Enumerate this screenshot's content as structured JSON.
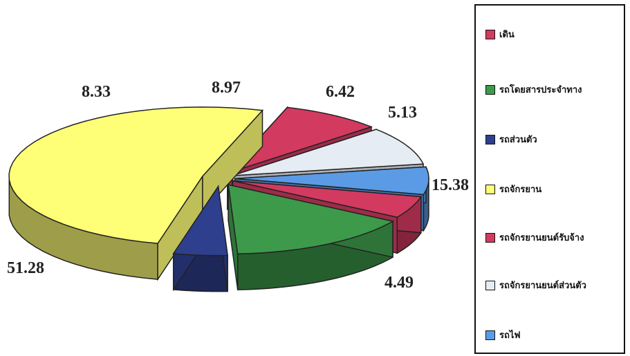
{
  "chart_data": {
    "type": "pie",
    "style": "3d-exploded",
    "slices": [
      {
        "name": "เดิน",
        "value": 8.33,
        "label": "8.33",
        "color": "#d33a60"
      },
      {
        "name": "รถโดยสารประจำทาง",
        "value": 15.38,
        "label": "15.38",
        "color": "#3d9a4a"
      },
      {
        "name": "รถส่วนตัว",
        "value": 4.49,
        "label": "4.49",
        "color": "#2e3f8e"
      },
      {
        "name": "รถจักรยาน",
        "value": 51.28,
        "label": "51.28",
        "color": "#ffff77"
      },
      {
        "name": "รถจักรยานยนต์รับจ้าง",
        "value": 5.13,
        "label": "5.13",
        "color": "#d33a60"
      },
      {
        "name": "รถจักรยานยนต์ส่วนตัว",
        "value": 8.97,
        "label": "8.97",
        "color": "#e6ecf4"
      },
      {
        "name": "รถไฟ",
        "value": 6.42,
        "label": "6.42",
        "color": "#5b9be6"
      }
    ],
    "legend_position": "right"
  },
  "legend": {
    "items": [
      {
        "label": "เดิน",
        "color": "#d33a60"
      },
      {
        "label": "รถโดยสารประจำทาง",
        "color": "#3d9a4a"
      },
      {
        "label": "รถส่วนตัว",
        "color": "#2e3f8e"
      },
      {
        "label": "รถจักรยาน",
        "color": "#ffff77"
      },
      {
        "label": "รถจักรยานยนต์รับจ้าง",
        "color": "#d33a60"
      },
      {
        "label": "รถจักรยานยนต์ส่วนตัว",
        "color": "#e6ecf4"
      },
      {
        "label": "รถไฟ",
        "color": "#5b9be6"
      }
    ]
  }
}
